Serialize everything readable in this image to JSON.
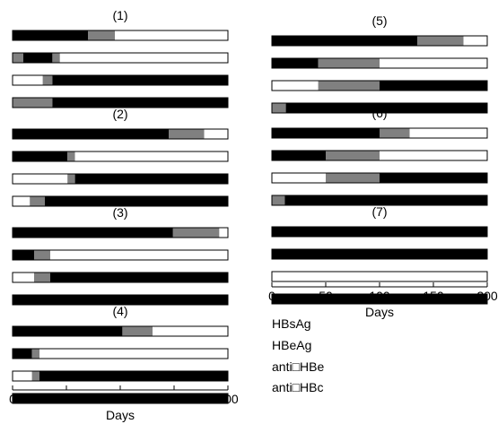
{
  "chart_data": {
    "type": "bar",
    "subtype": "stacked-horizontal-timeline",
    "x_range": [
      0,
      200
    ],
    "xlabel": "Days",
    "x_ticks": [
      "0",
      "50",
      "100",
      "150",
      "200"
    ],
    "state_colors": {
      "positive": "#000000",
      "intermediate": "#808080",
      "negative": "#ffffff"
    },
    "marker_labels": [
      "HBsAg",
      "HBeAg",
      "anti□HBe",
      "anti□HBc"
    ],
    "panels": [
      {
        "label": "(1)",
        "bars": [
          [
            {
              "state": "positive",
              "start": 0,
              "end": 70
            },
            {
              "state": "intermediate",
              "start": 70,
              "end": 95
            },
            {
              "state": "negative",
              "start": 95,
              "end": 200
            }
          ],
          [
            {
              "state": "intermediate",
              "start": 0,
              "end": 10
            },
            {
              "state": "positive",
              "start": 10,
              "end": 37
            },
            {
              "state": "intermediate",
              "start": 37,
              "end": 44
            },
            {
              "state": "negative",
              "start": 44,
              "end": 200
            }
          ],
          [
            {
              "state": "negative",
              "start": 0,
              "end": 28
            },
            {
              "state": "intermediate",
              "start": 28,
              "end": 37
            },
            {
              "state": "positive",
              "start": 37,
              "end": 200
            }
          ],
          [
            {
              "state": "intermediate",
              "start": 0,
              "end": 37
            },
            {
              "state": "positive",
              "start": 37,
              "end": 200
            }
          ]
        ]
      },
      {
        "label": "(2)",
        "bars": [
          [
            {
              "state": "positive",
              "start": 0,
              "end": 145
            },
            {
              "state": "intermediate",
              "start": 145,
              "end": 178
            },
            {
              "state": "negative",
              "start": 178,
              "end": 200
            }
          ],
          [
            {
              "state": "positive",
              "start": 0,
              "end": 51
            },
            {
              "state": "intermediate",
              "start": 51,
              "end": 58
            },
            {
              "state": "negative",
              "start": 58,
              "end": 200
            }
          ],
          [
            {
              "state": "negative",
              "start": 0,
              "end": 51
            },
            {
              "state": "intermediate",
              "start": 51,
              "end": 58
            },
            {
              "state": "positive",
              "start": 58,
              "end": 200
            }
          ],
          [
            {
              "state": "negative",
              "start": 0,
              "end": 16
            },
            {
              "state": "intermediate",
              "start": 16,
              "end": 30
            },
            {
              "state": "positive",
              "start": 30,
              "end": 200
            }
          ]
        ]
      },
      {
        "label": "(3)",
        "bars": [
          [
            {
              "state": "positive",
              "start": 0,
              "end": 149
            },
            {
              "state": "intermediate",
              "start": 149,
              "end": 192
            },
            {
              "state": "negative",
              "start": 192,
              "end": 200
            }
          ],
          [
            {
              "state": "positive",
              "start": 0,
              "end": 20
            },
            {
              "state": "intermediate",
              "start": 20,
              "end": 35
            },
            {
              "state": "negative",
              "start": 35,
              "end": 200
            }
          ],
          [
            {
              "state": "negative",
              "start": 0,
              "end": 20
            },
            {
              "state": "intermediate",
              "start": 20,
              "end": 35
            },
            {
              "state": "positive",
              "start": 35,
              "end": 200
            }
          ],
          [
            {
              "state": "positive",
              "start": 0,
              "end": 200
            }
          ]
        ]
      },
      {
        "label": "(4)",
        "bars": [
          [
            {
              "state": "positive",
              "start": 0,
              "end": 102
            },
            {
              "state": "intermediate",
              "start": 102,
              "end": 130
            },
            {
              "state": "negative",
              "start": 130,
              "end": 200
            }
          ],
          [
            {
              "state": "positive",
              "start": 0,
              "end": 18
            },
            {
              "state": "intermediate",
              "start": 18,
              "end": 25
            },
            {
              "state": "negative",
              "start": 25,
              "end": 200
            }
          ],
          [
            {
              "state": "negative",
              "start": 0,
              "end": 18
            },
            {
              "state": "intermediate",
              "start": 18,
              "end": 25
            },
            {
              "state": "positive",
              "start": 25,
              "end": 200
            }
          ],
          [
            {
              "state": "positive",
              "start": 0,
              "end": 200
            }
          ]
        ]
      },
      {
        "label": "(5)",
        "bars": [
          [
            {
              "state": "positive",
              "start": 0,
              "end": 135
            },
            {
              "state": "intermediate",
              "start": 135,
              "end": 178
            },
            {
              "state": "negative",
              "start": 178,
              "end": 200
            }
          ],
          [
            {
              "state": "positive",
              "start": 0,
              "end": 43
            },
            {
              "state": "intermediate",
              "start": 43,
              "end": 100
            },
            {
              "state": "negative",
              "start": 100,
              "end": 200
            }
          ],
          [
            {
              "state": "negative",
              "start": 0,
              "end": 43
            },
            {
              "state": "intermediate",
              "start": 43,
              "end": 100
            },
            {
              "state": "positive",
              "start": 100,
              "end": 200
            }
          ],
          [
            {
              "state": "intermediate",
              "start": 0,
              "end": 13
            },
            {
              "state": "positive",
              "start": 13,
              "end": 200
            }
          ]
        ]
      },
      {
        "label": "(6)",
        "bars": [
          [
            {
              "state": "positive",
              "start": 0,
              "end": 100
            },
            {
              "state": "intermediate",
              "start": 100,
              "end": 128
            },
            {
              "state": "negative",
              "start": 128,
              "end": 200
            }
          ],
          [
            {
              "state": "positive",
              "start": 0,
              "end": 50
            },
            {
              "state": "intermediate",
              "start": 50,
              "end": 100
            },
            {
              "state": "negative",
              "start": 100,
              "end": 200
            }
          ],
          [
            {
              "state": "negative",
              "start": 0,
              "end": 50
            },
            {
              "state": "intermediate",
              "start": 50,
              "end": 100
            },
            {
              "state": "positive",
              "start": 100,
              "end": 200
            }
          ],
          [
            {
              "state": "intermediate",
              "start": 0,
              "end": 12
            },
            {
              "state": "positive",
              "start": 12,
              "end": 200
            }
          ]
        ]
      },
      {
        "label": "(7)",
        "bars": [
          [
            {
              "state": "positive",
              "start": 0,
              "end": 200
            }
          ],
          [
            {
              "state": "positive",
              "start": 0,
              "end": 200
            }
          ],
          [
            {
              "state": "negative",
              "start": 0,
              "end": 200
            }
          ],
          [
            {
              "state": "positive",
              "start": 0,
              "end": 200
            }
          ]
        ]
      }
    ]
  }
}
